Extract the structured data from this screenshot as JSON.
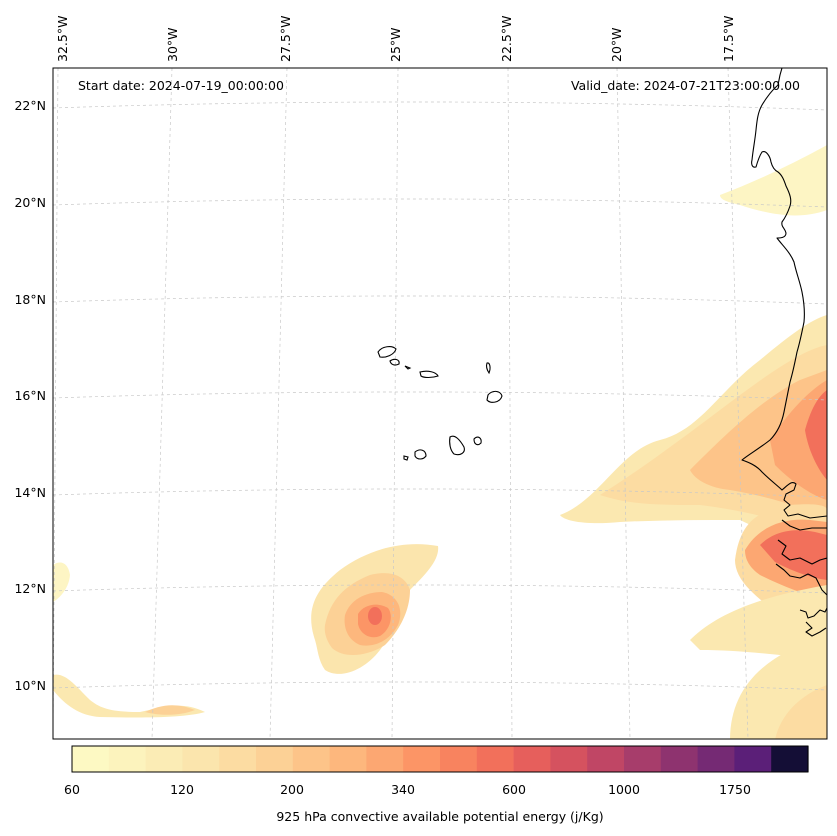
{
  "header": {
    "start_date": "Start date: 2024-07-19_00:00:00",
    "valid_date": "Valid_date: 2024-07-21T23:00:00.00"
  },
  "longitude_labels": [
    "32.5°W",
    "30°W",
    "27.5°W",
    "25°W",
    "22.5°W",
    "20°W",
    "17.5°W"
  ],
  "latitude_labels": [
    "22°N",
    "20°N",
    "18°N",
    "16°N",
    "14°N",
    "12°N",
    "10°N"
  ],
  "colorbar": {
    "label": "925 hPa convective available potential energy (j/Kg)",
    "tick_labels": [
      "60",
      "120",
      "200",
      "340",
      "600",
      "1000",
      "1750"
    ],
    "colors": [
      "#fdf9c3",
      "#fcf3bd",
      "#fbecb5",
      "#fbe5ad",
      "#fcdca2",
      "#fcd196",
      "#fdc489",
      "#fdb77d",
      "#fca772",
      "#fc9566",
      "#f8835f",
      "#f2705b",
      "#e65f5c",
      "#d5525f",
      "#c04665",
      "#a73d6b",
      "#8e336f",
      "#752a74",
      "#5b1f78",
      "#140e36"
    ],
    "colormap": "magma (reversed)"
  },
  "map": {
    "extent": "Cape Verde and West African coast",
    "gridlines": true
  }
}
